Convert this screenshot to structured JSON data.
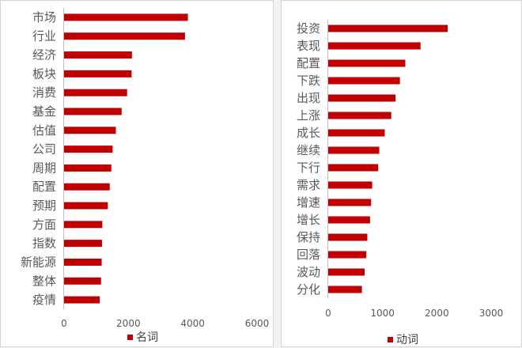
{
  "chart_data": [
    {
      "type": "bar",
      "orientation": "horizontal",
      "categories": [
        "市场",
        "行业",
        "经济",
        "板块",
        "消费",
        "基金",
        "估值",
        "公司",
        "周期",
        "配置",
        "预期",
        "方面",
        "指数",
        "新能源",
        "整体",
        "疫情"
      ],
      "series": [
        {
          "name": "名词",
          "values": [
            3850,
            3760,
            2110,
            2100,
            1960,
            1790,
            1610,
            1510,
            1470,
            1420,
            1360,
            1190,
            1180,
            1170,
            1150,
            1110
          ]
        }
      ],
      "xlim": [
        0,
        6000
      ],
      "xticks": [
        "0",
        "2000",
        "4000",
        "6000"
      ],
      "grid": false,
      "legend_position": "bottom",
      "color": "#c00000"
    },
    {
      "type": "bar",
      "orientation": "horizontal",
      "categories": [
        "投资",
        "表现",
        "配置",
        "下跌",
        "出现",
        "上涨",
        "成长",
        "继续",
        "下行",
        "需求",
        "增速",
        "增长",
        "保持",
        "回落",
        "波动",
        "分化"
      ],
      "series": [
        {
          "name": "动词",
          "values": [
            2200,
            1700,
            1420,
            1320,
            1240,
            1160,
            1040,
            940,
            920,
            810,
            790,
            770,
            720,
            700,
            670,
            620
          ]
        }
      ],
      "xlim": [
        0,
        3000
      ],
      "xticks": [
        "0",
        "1000",
        "2000",
        "3000"
      ],
      "grid": false,
      "legend_position": "bottom",
      "color": "#c00000"
    }
  ]
}
